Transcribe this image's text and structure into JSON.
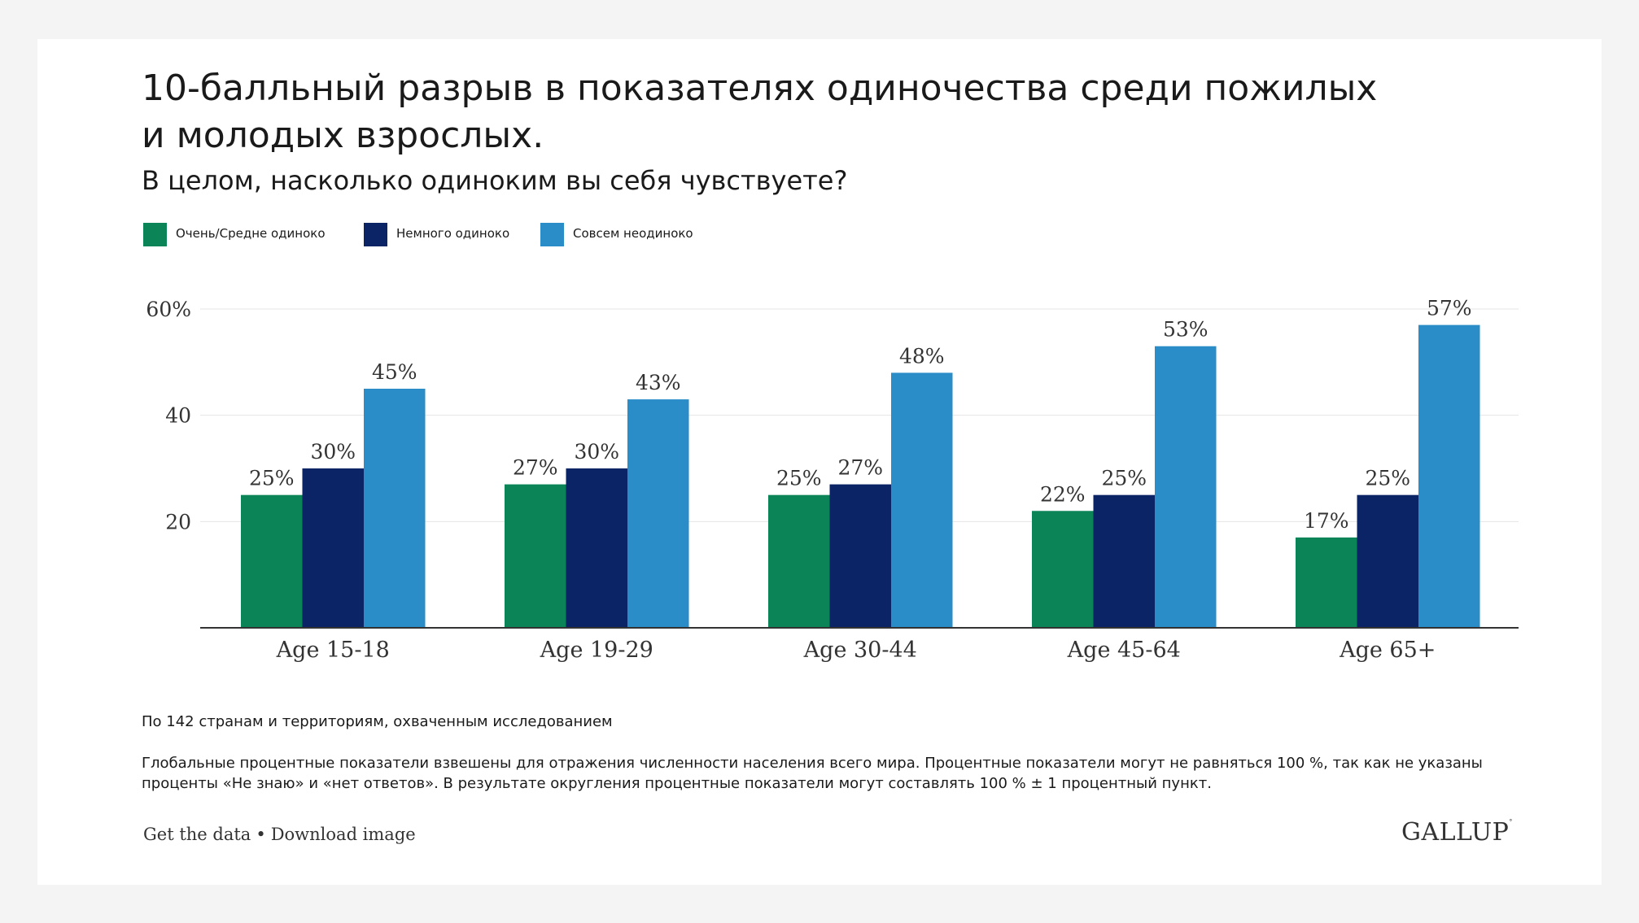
{
  "title": "10-балльный разрыв в показателях одиночества среди пожилых и молодых взрослых.",
  "subtitle": "В целом, насколько одиноким вы себя чувствуете?",
  "colors": {
    "green": "#0b8457",
    "navy": "#0b2466",
    "blue": "#2a8dc8",
    "axis": "#333333",
    "grid": "#e5e5e5",
    "text": "#333333"
  },
  "legend": [
    {
      "label": "Очень/Средне одиноко",
      "color": "#0b8457"
    },
    {
      "label": "Немного одиноко",
      "color": "#0b2466"
    },
    {
      "label": "Совсем неодиноко",
      "color": "#2a8dc8"
    }
  ],
  "chart_data": {
    "type": "bar",
    "categories": [
      "Age 15-18",
      "Age 19-29",
      "Age 30-44",
      "Age 45-64",
      "Age 65+"
    ],
    "series": [
      {
        "name": "Очень/Средне одиноко",
        "values": [
          25,
          27,
          25,
          22,
          17
        ],
        "labels": [
          "25%",
          "27%",
          "25%",
          "22%",
          "17%"
        ]
      },
      {
        "name": "Немного одиноко",
        "values": [
          30,
          30,
          27,
          25,
          25
        ],
        "labels": [
          "30%",
          "30%",
          "27%",
          "25%",
          "25%"
        ]
      },
      {
        "name": "Совсем неодиноко",
        "values": [
          45,
          43,
          48,
          53,
          57
        ],
        "labels": [
          "45%",
          "43%",
          "48%",
          "53%",
          "57%"
        ]
      }
    ],
    "yticks": [
      {
        "value": 20,
        "label": "20"
      },
      {
        "value": 40,
        "label": "40"
      },
      {
        "value": 60,
        "label": "60%"
      }
    ],
    "ylim": [
      0,
      60
    ],
    "grid": true,
    "legend_position": "top-left"
  },
  "notes": {
    "scope": "По 142 странам и территориям, охваченным исследованием",
    "methodology": "Глобальные процентные показатели взвешены для отражения численности населения всего мира. Процентные показатели могут не равняться 100 %, так как не указаны проценты «Не знаю» и «нет ответов». В результате округления процентные показатели могут составлять 100 % ± 1 процентный пункт."
  },
  "footer": {
    "get_data": "Get the data",
    "separator": "•",
    "download_image": "Download image",
    "logo": "GALLUP"
  }
}
